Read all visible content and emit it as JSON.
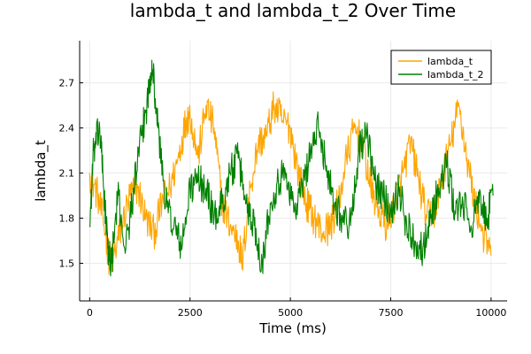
{
  "chart_data": {
    "type": "line",
    "title": "lambda_t and lambda_t_2 Over Time",
    "xlabel": "Time (ms)",
    "ylabel": "lambda_t",
    "xlim": [
      -250,
      10400
    ],
    "ylim": [
      1.25,
      2.98
    ],
    "xticks": [
      0,
      2500,
      5000,
      7500,
      10000
    ],
    "xtick_labels": [
      "0",
      "2500",
      "5000",
      "7500",
      "10000"
    ],
    "yticks": [
      1.5,
      1.8,
      2.1,
      2.4,
      2.7
    ],
    "ytick_labels": [
      "1.5",
      "1.8",
      "2.1",
      "2.4",
      "2.7"
    ],
    "grid": true,
    "legend_position": "top-right",
    "series": [
      {
        "name": "lambda_t",
        "color": "#FFA500",
        "x": [
          0,
          200,
          400,
          500,
          600,
          800,
          1000,
          1200,
          1400,
          1600,
          1800,
          2000,
          2200,
          2400,
          2500,
          2700,
          2900,
          3100,
          3300,
          3500,
          3700,
          3800,
          4000,
          4200,
          4400,
          4600,
          4800,
          5000,
          5200,
          5400,
          5600,
          5800,
          6000,
          6200,
          6400,
          6600,
          6800,
          7000,
          7200,
          7400,
          7600,
          7800,
          8000,
          8200,
          8400,
          8600,
          8800,
          9000,
          9200,
          9400,
          9600,
          9800,
          10000
        ],
        "values": [
          2.1,
          1.95,
          1.7,
          1.5,
          1.55,
          1.75,
          1.95,
          2.0,
          1.8,
          1.7,
          1.9,
          2.0,
          2.2,
          2.45,
          2.5,
          2.2,
          2.55,
          2.4,
          1.9,
          1.75,
          1.65,
          1.5,
          2.0,
          2.3,
          2.35,
          2.55,
          2.45,
          2.4,
          2.1,
          1.9,
          1.8,
          1.7,
          1.75,
          1.9,
          2.2,
          2.4,
          2.3,
          2.0,
          1.85,
          1.75,
          1.9,
          2.1,
          2.3,
          2.05,
          1.8,
          1.85,
          2.1,
          2.3,
          2.55,
          2.2,
          1.9,
          1.7,
          1.55
        ]
      },
      {
        "name": "lambda_t_2",
        "color": "#008000",
        "x": [
          0,
          100,
          250,
          350,
          450,
          550,
          700,
          900,
          1100,
          1300,
          1450,
          1550,
          1700,
          1900,
          2100,
          2300,
          2500,
          2700,
          2900,
          3100,
          3300,
          3500,
          3700,
          3900,
          4100,
          4300,
          4500,
          4700,
          4900,
          5100,
          5300,
          5500,
          5700,
          5900,
          6100,
          6300,
          6500,
          6700,
          6900,
          7100,
          7300,
          7500,
          7700,
          7900,
          8100,
          8300,
          8500,
          8700,
          8900,
          9100,
          9300,
          9500,
          9700,
          9900,
          10050
        ],
        "values": [
          1.75,
          2.25,
          2.4,
          2.0,
          1.6,
          1.5,
          1.95,
          1.6,
          2.0,
          2.35,
          2.6,
          2.85,
          2.4,
          1.9,
          1.75,
          1.6,
          2.0,
          2.05,
          2.0,
          1.8,
          1.9,
          2.1,
          2.2,
          1.9,
          1.75,
          1.5,
          1.9,
          2.05,
          2.1,
          1.85,
          2.0,
          2.25,
          2.4,
          2.15,
          1.9,
          1.8,
          1.75,
          2.25,
          2.35,
          2.05,
          1.95,
          1.85,
          2.0,
          1.75,
          1.65,
          1.6,
          1.8,
          2.0,
          2.15,
          1.85,
          1.9,
          1.75,
          1.9,
          1.8,
          1.95
        ]
      }
    ]
  }
}
